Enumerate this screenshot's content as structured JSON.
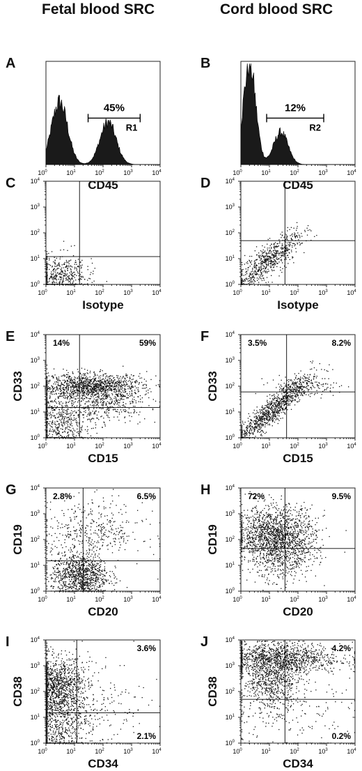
{
  "titles": {
    "left": "Fetal blood SRC",
    "right": "Cord blood SRC"
  },
  "chart_data": [
    {
      "id": "A",
      "type": "histogram",
      "xlabel": "CD45",
      "xlim": [
        1,
        10000
      ],
      "xscale": "log",
      "x_ticks": [
        "10",
        "10",
        "10",
        "10",
        "10"
      ],
      "x_exp": [
        "0",
        "1",
        "2",
        "3",
        "4"
      ],
      "gate": {
        "label": "R1",
        "percent": "45%",
        "range": [
          30,
          2000
        ]
      },
      "peaks": [
        {
          "center": 3,
          "height": 0.62,
          "width": 0.28
        },
        {
          "center": 150,
          "height": 0.42,
          "width": 0.28
        }
      ]
    },
    {
      "id": "B",
      "type": "histogram",
      "xlabel": "CD45",
      "xlim": [
        1,
        10000
      ],
      "xscale": "log",
      "x_ticks": [
        "10",
        "10",
        "10",
        "10",
        "10"
      ],
      "x_exp": [
        "0",
        "1",
        "2",
        "3",
        "4"
      ],
      "gate": {
        "label": "R2",
        "percent": "12%",
        "range": [
          8,
          800
        ]
      },
      "peaks": [
        {
          "center": 2,
          "height": 1.0,
          "width": 0.22
        },
        {
          "center": 25,
          "height": 0.32,
          "width": 0.25
        }
      ]
    },
    {
      "id": "C",
      "type": "scatter",
      "xlabel": "Isotype",
      "ylabel": "",
      "xlim": [
        1,
        10000
      ],
      "ylim": [
        1,
        10000
      ],
      "scale": "log",
      "quad_lines": {
        "x": 15,
        "y": 12
      },
      "quadrant_labels": {},
      "clusters": [
        {
          "cx": 3,
          "cy": 2,
          "sx": 0.25,
          "sy": 0.22,
          "n": 500
        }
      ]
    },
    {
      "id": "D",
      "type": "scatter",
      "xlabel": "Isotype",
      "ylabel": "",
      "xlim": [
        1,
        10000
      ],
      "ylim": [
        1,
        10000
      ],
      "scale": "log",
      "quad_lines": {
        "x": 35,
        "y": 50
      },
      "quadrant_labels": {},
      "clusters": [
        {
          "cx": 8,
          "cy": 8,
          "sx": 0.32,
          "sy": 0.3,
          "n": 700,
          "corr": 0.85
        }
      ]
    },
    {
      "id": "E",
      "type": "scatter",
      "xlabel": "CD15",
      "ylabel": "CD33",
      "xlim": [
        1,
        10000
      ],
      "ylim": [
        1,
        10000
      ],
      "scale": "log",
      "quad_lines": {
        "x": 15,
        "y": 15
      },
      "quadrant_labels": {
        "ul": "14%",
        "ur": "59%"
      },
      "clusters": [
        {
          "cx": 40,
          "cy": 100,
          "sx": 0.45,
          "sy": 0.12,
          "n": 1200
        },
        {
          "cx": 3,
          "cy": 4,
          "sx": 0.3,
          "sy": 0.35,
          "n": 700
        },
        {
          "cx": 150,
          "cy": 20,
          "sx": 0.35,
          "sy": 0.15,
          "n": 300
        }
      ]
    },
    {
      "id": "F",
      "type": "scatter",
      "xlabel": "CD15",
      "ylabel": "CD33",
      "xlim": [
        1,
        10000
      ],
      "ylim": [
        1,
        10000
      ],
      "scale": "log",
      "quad_lines": {
        "x": 40,
        "y": 60
      },
      "quadrant_labels": {
        "ul": "3.5%",
        "ur": "8.2%"
      },
      "clusters": [
        {
          "cx": 12,
          "cy": 12,
          "sx": 0.35,
          "sy": 0.35,
          "n": 1000,
          "corr": 0.92
        },
        {
          "cx": 150,
          "cy": 100,
          "sx": 0.3,
          "sy": 0.1,
          "n": 150
        }
      ]
    },
    {
      "id": "G",
      "type": "scatter",
      "xlabel": "CD20",
      "ylabel": "CD19",
      "xlim": [
        1,
        10000
      ],
      "ylim": [
        1,
        10000
      ],
      "scale": "log",
      "quad_lines": {
        "x": 20,
        "y": 15
      },
      "quadrant_labels": {
        "ul": "2.8%",
        "ur": "6.5%"
      },
      "clusters": [
        {
          "cx": 15,
          "cy": 4,
          "sx": 0.25,
          "sy": 0.22,
          "n": 1000
        },
        {
          "cx": 40,
          "cy": 200,
          "sx": 0.45,
          "sy": 0.3,
          "n": 400
        }
      ]
    },
    {
      "id": "H",
      "type": "scatter",
      "xlabel": "CD20",
      "ylabel": "CD19",
      "xlim": [
        1,
        10000
      ],
      "ylim": [
        1,
        10000
      ],
      "scale": "log",
      "quad_lines": {
        "x": 35,
        "y": 45
      },
      "quadrant_labels": {
        "ul": "72%",
        "ur": "9.5%"
      },
      "clusters": [
        {
          "cx": 15,
          "cy": 150,
          "sx": 0.35,
          "sy": 0.28,
          "n": 1400
        },
        {
          "cx": 30,
          "cy": 30,
          "sx": 0.3,
          "sy": 0.3,
          "n": 400
        }
      ]
    },
    {
      "id": "I",
      "type": "scatter",
      "xlabel": "CD34",
      "ylabel": "CD38",
      "xlim": [
        1,
        10000
      ],
      "ylim": [
        1,
        10000
      ],
      "scale": "log",
      "quad_lines": {
        "x": 12,
        "y": 15
      },
      "quadrant_labels": {
        "ur": "3.6%",
        "lr": "2.1%"
      },
      "clusters": [
        {
          "cx": 2,
          "cy": 200,
          "sx": 0.25,
          "sy": 0.25,
          "n": 700
        },
        {
          "cx": 2,
          "cy": 15,
          "sx": 0.3,
          "sy": 0.5,
          "n": 1100
        },
        {
          "cx": 30,
          "cy": 30,
          "sx": 0.5,
          "sy": 0.5,
          "n": 250
        }
      ]
    },
    {
      "id": "J",
      "type": "scatter",
      "xlabel": "CD34",
      "ylabel": "CD38",
      "xlim": [
        1,
        10000
      ],
      "ylim": [
        1,
        10000
      ],
      "scale": "log",
      "quad_lines": {
        "x": 35,
        "y": 50
      },
      "quadrant_labels": {
        "ur": "4.2%",
        "lr": "0.2%"
      },
      "clusters": [
        {
          "cx": 20,
          "cy": 2000,
          "sx": 0.55,
          "sy": 0.15,
          "n": 1100
        },
        {
          "cx": 12,
          "cy": 300,
          "sx": 0.25,
          "sy": 0.3,
          "n": 700
        },
        {
          "cx": 40,
          "cy": 20,
          "sx": 0.6,
          "sy": 0.5,
          "n": 200
        }
      ]
    }
  ]
}
